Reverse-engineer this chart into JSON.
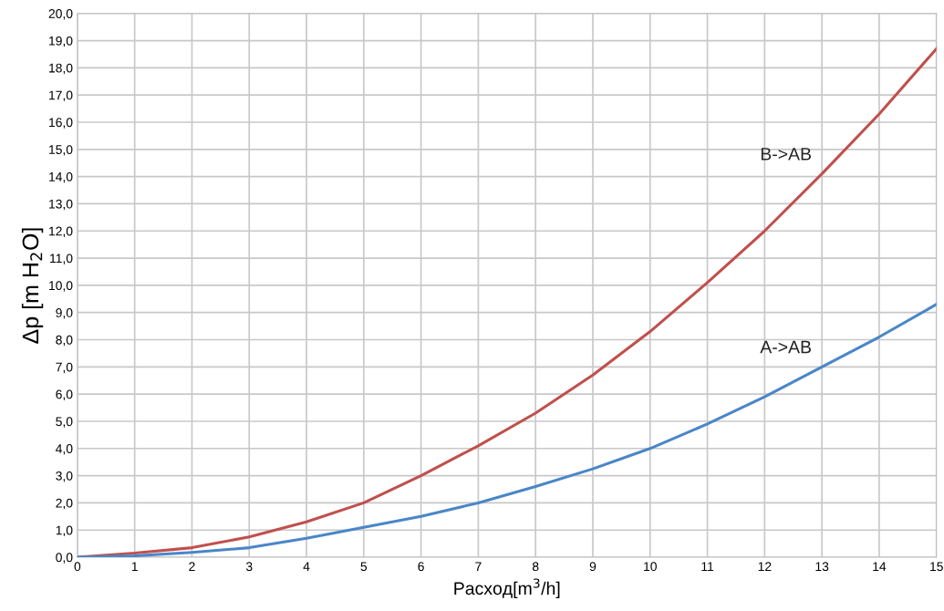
{
  "chart_data": {
    "type": "line",
    "xlabel": "Расход[m$^{3}$/h]",
    "ylabel": "Δp [m H$_{2}$O]",
    "x": [
      0,
      1,
      2,
      3,
      4,
      5,
      6,
      7,
      8,
      9,
      10,
      11,
      12,
      13,
      14,
      15
    ],
    "series": [
      {
        "name": "B->AB",
        "color": "#c0504d",
        "values": [
          0,
          0.15,
          0.35,
          0.75,
          1.3,
          2.0,
          3.0,
          4.1,
          5.3,
          6.7,
          8.3,
          10.1,
          12.0,
          14.1,
          16.3,
          18.7
        ]
      },
      {
        "name": "A->AB",
        "color": "#4a86c8",
        "values": [
          0,
          0.05,
          0.18,
          0.35,
          0.7,
          1.1,
          1.5,
          2.0,
          2.6,
          3.25,
          4.0,
          4.9,
          5.9,
          7.0,
          8.1,
          9.3
        ]
      }
    ],
    "xlim": [
      0,
      15
    ],
    "xticks": [
      0,
      1,
      2,
      3,
      4,
      5,
      6,
      7,
      8,
      9,
      10,
      11,
      12,
      13,
      14,
      15
    ],
    "ylim": [
      0,
      20
    ],
    "yticks": [
      {
        "value": 0,
        "label": "0,0"
      },
      {
        "value": 1,
        "label": "1,0"
      },
      {
        "value": 2,
        "label": "2,0"
      },
      {
        "value": 3,
        "label": "3,0"
      },
      {
        "value": 4,
        "label": "4,0"
      },
      {
        "value": 5,
        "label": "5,0"
      },
      {
        "value": 6,
        "label": "6,0"
      },
      {
        "value": 7,
        "label": "7,0"
      },
      {
        "value": 8,
        "label": "8,0"
      },
      {
        "value": 9,
        "label": "9,0"
      },
      {
        "value": 10,
        "label": "10,0"
      },
      {
        "value": 11,
        "label": "11,0"
      },
      {
        "value": 12,
        "label": "12,0"
      },
      {
        "value": 13,
        "label": "13,0"
      },
      {
        "value": 14,
        "label": "14,0"
      },
      {
        "value": 15,
        "label": "15,0"
      },
      {
        "value": 16,
        "label": "16,0"
      },
      {
        "value": 17,
        "label": "17,0"
      },
      {
        "value": 18,
        "label": "18,0"
      },
      {
        "value": 19,
        "label": "19,0"
      },
      {
        "value": 20,
        "label": "20,0"
      }
    ],
    "grid": true,
    "legend": false,
    "marker": "none",
    "line_style": "solid"
  }
}
